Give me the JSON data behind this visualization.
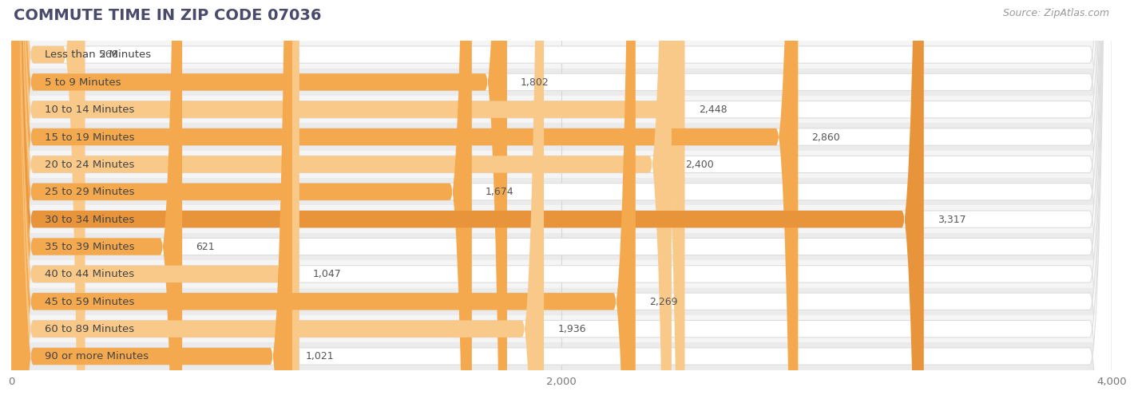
{
  "title": "COMMUTE TIME IN ZIP CODE 07036",
  "source_text": "Source: ZipAtlas.com",
  "categories": [
    "Less than 5 Minutes",
    "5 to 9 Minutes",
    "10 to 14 Minutes",
    "15 to 19 Minutes",
    "20 to 24 Minutes",
    "25 to 29 Minutes",
    "30 to 34 Minutes",
    "35 to 39 Minutes",
    "40 to 44 Minutes",
    "45 to 59 Minutes",
    "60 to 89 Minutes",
    "90 or more Minutes"
  ],
  "values": [
    268,
    1802,
    2448,
    2860,
    2400,
    1674,
    3317,
    621,
    1047,
    2269,
    1936,
    1021
  ],
  "bar_color_light": "#f9c98a",
  "bar_color_normal": "#f5a94e",
  "bar_color_dark": "#e8943a",
  "highlight_index": 6,
  "background_color": "#ffffff",
  "row_bg_odd": "#f5f5f5",
  "row_bg_even": "#ebebeb",
  "pill_color": "#ffffff",
  "pill_edge_color": "#dddddd",
  "title_color": "#4a4a6a",
  "label_color": "#444444",
  "value_color": "#555555",
  "source_color": "#999999",
  "xlim": [
    0,
    4000
  ],
  "xticks": [
    0,
    2000,
    4000
  ],
  "grid_color": "#cccccc",
  "title_fontsize": 14,
  "label_fontsize": 9.5,
  "value_fontsize": 9,
  "source_fontsize": 9,
  "bar_height": 0.62
}
